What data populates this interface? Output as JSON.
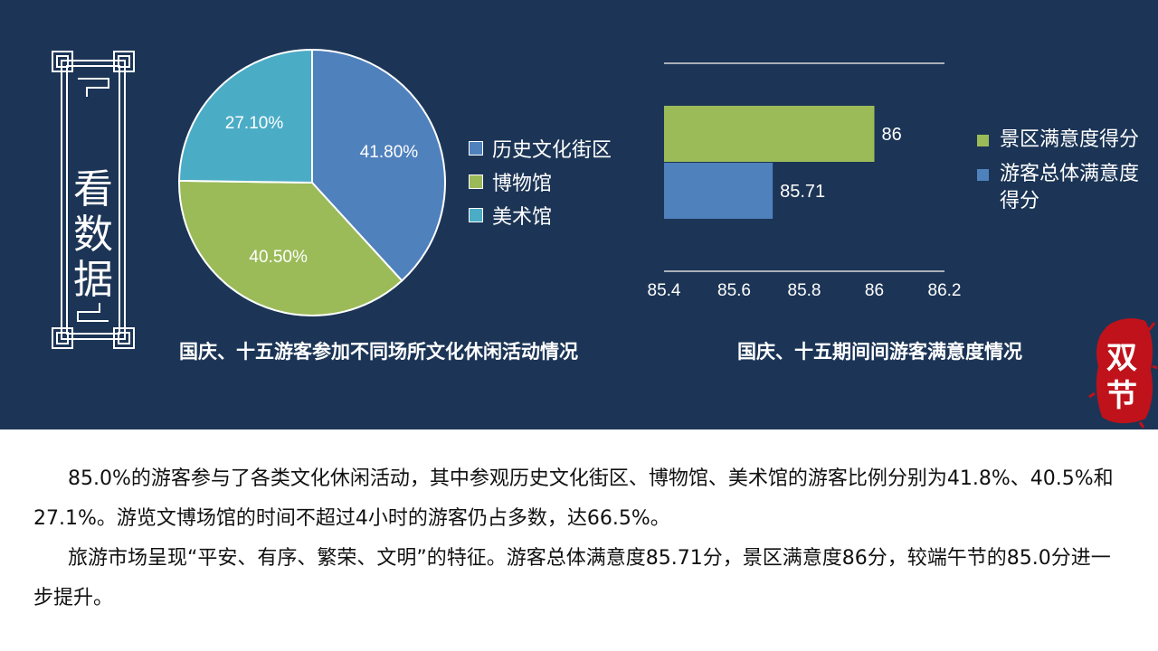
{
  "side_label": [
    "看",
    "数",
    "据"
  ],
  "stamp": [
    "双",
    "节"
  ],
  "chart_data": [
    {
      "type": "pie",
      "title": "国庆、十五游客参加不同场所文化休闲活动情况",
      "categories": [
        "历史文化街区",
        "博物馆",
        "美术馆"
      ],
      "values": [
        41.8,
        40.5,
        27.1
      ],
      "data_labels": [
        "41.80%",
        "40.50%",
        "27.10%"
      ],
      "colors": [
        "#4f81bd",
        "#9bbb59",
        "#4bacc6"
      ],
      "legend": "right"
    },
    {
      "type": "bar",
      "orientation": "horizontal",
      "title": "国庆、十五期间间游客满意度情况",
      "series": [
        {
          "name": "景区满意度得分",
          "values": [
            86
          ],
          "label": "86",
          "color": "#9bbb59"
        },
        {
          "name": "游客总体满意度得分",
          "values": [
            85.71
          ],
          "label": "85.71",
          "color": "#4f81bd"
        }
      ],
      "xlim": [
        85.4,
        86.2
      ],
      "xticks": [
        "85.4",
        "85.6",
        "85.8",
        "86",
        "86.2"
      ],
      "legend": "right"
    }
  ],
  "paragraphs": [
    "85.0%的游客参与了各类文化休闲活动，其中参观历史文化街区、博物馆、美术馆的游客比例分别为41.8%、40.5%和27.1%。游览文博场馆的时间不超过4小时的游客仍占多数，达66.5%。",
    "旅游市场呈现“平安、有序、繁荣、文明”的特征。游客总体满意度85.71分，景区满意度86分，较端午节的85.0分进一步提升。"
  ]
}
